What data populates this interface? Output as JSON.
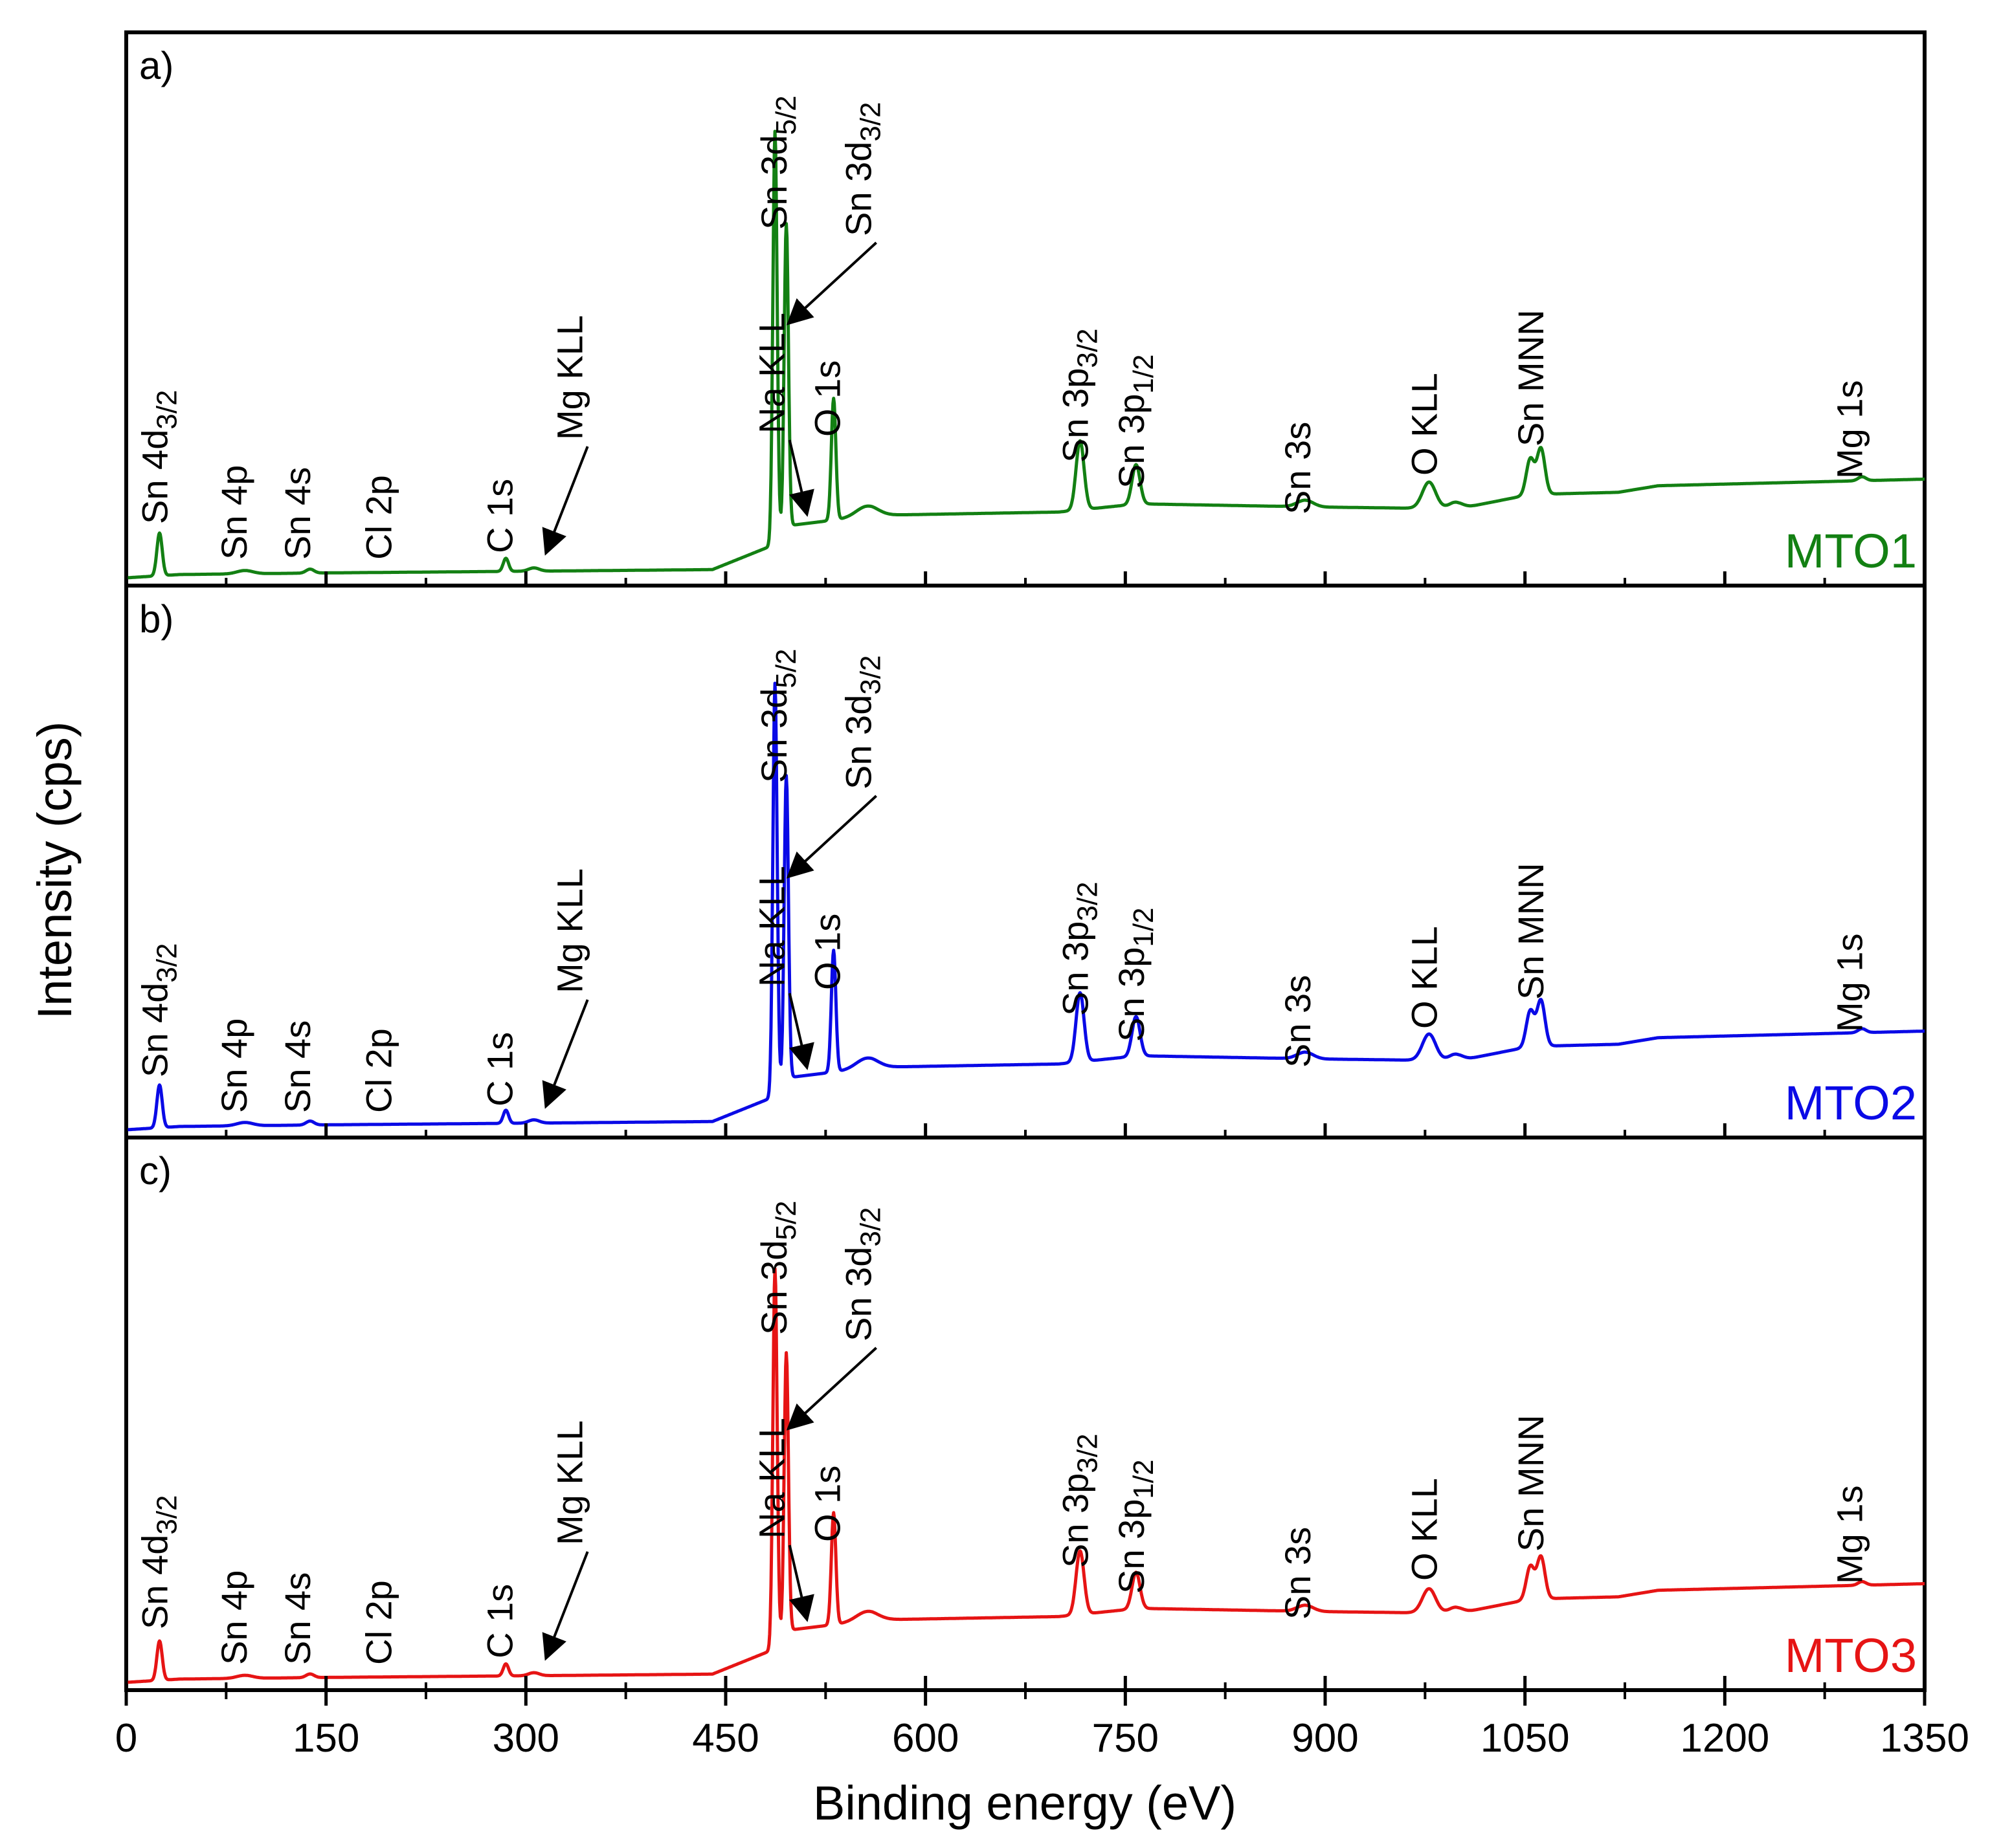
{
  "chart_data": {
    "type": "line",
    "xlabel": "Binding energy (eV)",
    "ylabel": "Intensity (cps)",
    "xlim": [
      0,
      1350
    ],
    "xticks": [
      "0",
      "150",
      "300",
      "450",
      "600",
      "750",
      "900",
      "1050",
      "1200",
      "1350"
    ],
    "peak_labels": [
      {
        "text": "Sn 4d",
        "sub": "3/2",
        "energy": 25
      },
      {
        "text": "Sn 4p",
        "energy": 89
      },
      {
        "text": "Sn 4s",
        "energy": 138
      },
      {
        "text": "Cl 2p",
        "energy": 199
      },
      {
        "text": "C 1s",
        "energy": 285
      },
      {
        "text": "Mg KLL",
        "energy": 306,
        "arrow": true
      },
      {
        "text": "Na KLL",
        "energy": 497,
        "arrow": true
      },
      {
        "text": "Sn 3d",
        "sub": "5/2",
        "energy": 487
      },
      {
        "text": "Sn 3d",
        "sub": "3/2",
        "energy": 495,
        "arrow": true
      },
      {
        "text": "O 1s",
        "energy": 531
      },
      {
        "text": "Sn 3p",
        "sub": "3/2",
        "energy": 716
      },
      {
        "text": "Sn 3p",
        "sub": "1/2",
        "energy": 758
      },
      {
        "text": "Sn 3s",
        "energy": 885
      },
      {
        "text": "O KLL",
        "energy": 978
      },
      {
        "text": "Sn MNN",
        "energy": 1058
      },
      {
        "text": "Mg 1s",
        "energy": 1303
      }
    ],
    "panels": [
      {
        "letter": "a)",
        "sample": "MTO1",
        "color": "#138013",
        "scale": 1.0
      },
      {
        "letter": "b)",
        "sample": "MTO2",
        "color": "#0a0ae6",
        "scale": 1.0
      },
      {
        "letter": "c)",
        "sample": "MTO3",
        "color": "#e61414",
        "scale": 0.92
      }
    ],
    "background": {
      "energy": [
        0,
        40,
        150,
        300,
        440,
        486,
        490,
        500,
        560,
        700,
        760,
        900,
        1000,
        1050,
        1070,
        1120,
        1150,
        1250,
        1350
      ],
      "intensity": [
        0,
        0.01,
        0.015,
        0.02,
        0.025,
        0.1,
        0.13,
        0.16,
        0.19,
        0.2,
        0.225,
        0.215,
        0.21,
        0.25,
        0.255,
        0.26,
        0.28,
        0.29,
        0.3
      ]
    },
    "peaks": [
      {
        "energy": 25,
        "intensity": 0.13,
        "width": 2
      },
      {
        "energy": 89,
        "intensity": 0.01,
        "width": 6
      },
      {
        "energy": 138,
        "intensity": 0.012,
        "width": 3
      },
      {
        "energy": 285,
        "intensity": 0.04,
        "width": 2
      },
      {
        "energy": 306,
        "intensity": 0.01,
        "width": 4
      },
      {
        "energy": 487,
        "intensity": 1.25,
        "width": 1.6
      },
      {
        "energy": 495.5,
        "intensity": 0.93,
        "width": 1.6
      },
      {
        "energy": 531,
        "intensity": 0.37,
        "width": 1.7
      },
      {
        "energy": 556,
        "intensity": 0.03,
        "width": 8
      },
      {
        "energy": 716,
        "intensity": 0.21,
        "width": 3
      },
      {
        "energy": 758,
        "intensity": 0.12,
        "width": 3
      },
      {
        "energy": 885,
        "intensity": 0.02,
        "width": 6
      },
      {
        "energy": 978,
        "intensity": 0.08,
        "width": 5
      },
      {
        "energy": 998,
        "intensity": 0.02,
        "width": 5
      },
      {
        "energy": 1054,
        "intensity": 0.11,
        "width": 3
      },
      {
        "energy": 1062,
        "intensity": 0.14,
        "width": 3
      },
      {
        "energy": 1303,
        "intensity": 0.012,
        "width": 3
      }
    ]
  }
}
